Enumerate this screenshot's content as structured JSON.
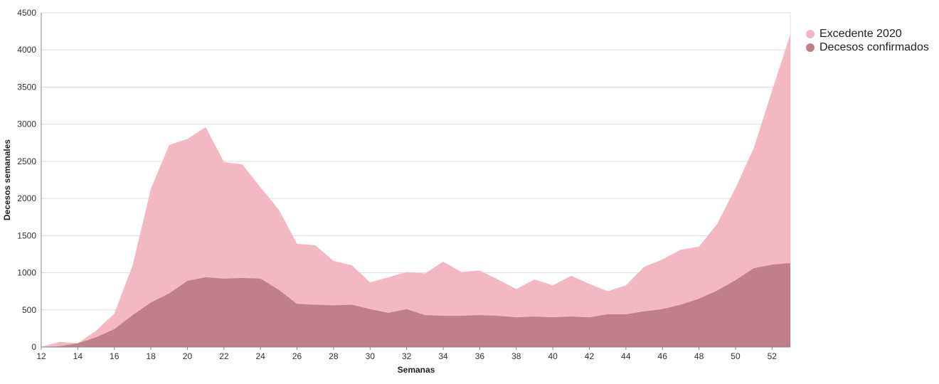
{
  "chart_data": {
    "type": "area",
    "xlabel": "Semanas",
    "ylabel": "Decesos semanales",
    "xlim": [
      12,
      53
    ],
    "ylim": [
      0,
      4500
    ],
    "x_ticks": [
      12,
      14,
      16,
      18,
      20,
      22,
      24,
      26,
      28,
      30,
      32,
      34,
      36,
      38,
      40,
      42,
      44,
      46,
      48,
      50,
      52
    ],
    "y_ticks": [
      0,
      500,
      1000,
      1500,
      2000,
      2500,
      3000,
      3500,
      4000,
      4500
    ],
    "grid": true,
    "legend_position": "top-right",
    "x": [
      12,
      13,
      14,
      15,
      16,
      17,
      18,
      19,
      20,
      21,
      22,
      23,
      24,
      25,
      26,
      27,
      28,
      29,
      30,
      31,
      32,
      33,
      34,
      35,
      36,
      37,
      38,
      39,
      40,
      41,
      42,
      43,
      44,
      45,
      46,
      47,
      48,
      49,
      50,
      51,
      52,
      53
    ],
    "series": [
      {
        "name": "Excedente 2020",
        "color": "#f2b8c4",
        "values": [
          0,
          70,
          40,
          220,
          450,
          1100,
          2130,
          2720,
          2800,
          2960,
          2490,
          2460,
          2150,
          1850,
          1390,
          1370,
          1160,
          1100,
          870,
          940,
          1010,
          990,
          1150,
          1010,
          1030,
          910,
          780,
          910,
          830,
          960,
          850,
          750,
          830,
          1080,
          1180,
          1310,
          1350,
          1660,
          2140,
          2680,
          3450,
          4210
        ]
      },
      {
        "name": "Decesos confirmados",
        "color": "#bf808b",
        "values": [
          0,
          10,
          50,
          130,
          240,
          430,
          600,
          720,
          890,
          940,
          920,
          930,
          920,
          770,
          580,
          570,
          560,
          570,
          510,
          460,
          510,
          430,
          420,
          420,
          430,
          420,
          400,
          410,
          400,
          410,
          400,
          440,
          440,
          480,
          510,
          570,
          650,
          760,
          900,
          1060,
          1110,
          1130
        ]
      }
    ]
  }
}
